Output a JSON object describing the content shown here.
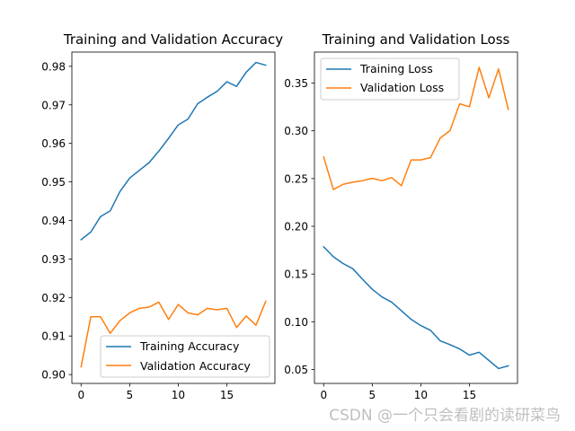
{
  "colors": {
    "training": "#1f77b4",
    "validation": "#ff7f0e"
  },
  "watermark": "CSDN @一个只会看剧的读研菜鸟",
  "chart_data": [
    {
      "type": "line",
      "title": "Training and Validation Accuracy",
      "xlabel": "",
      "ylabel": "",
      "xlim": [
        -0.95,
        19.95
      ],
      "ylim": [
        0.8977,
        0.9837
      ],
      "xticks": [
        0,
        5,
        10,
        15
      ],
      "yticks": [
        0.9,
        0.91,
        0.92,
        0.93,
        0.94,
        0.95,
        0.96,
        0.97,
        0.98
      ],
      "ytick_labels": [
        "0.90",
        "0.91",
        "0.92",
        "0.93",
        "0.94",
        "0.95",
        "0.96",
        "0.97",
        "0.98"
      ],
      "grid": false,
      "legend_position": "lower right",
      "x": [
        0,
        1,
        2,
        3,
        4,
        5,
        6,
        7,
        8,
        9,
        10,
        11,
        12,
        13,
        14,
        15,
        16,
        17,
        18,
        19
      ],
      "series": [
        {
          "name": "Training Accuracy",
          "color_key": "training",
          "values": [
            0.935,
            0.937,
            0.941,
            0.9425,
            0.9475,
            0.951,
            0.953,
            0.955,
            0.958,
            0.9613,
            0.9648,
            0.9663,
            0.9703,
            0.972,
            0.9735,
            0.976,
            0.9748,
            0.9785,
            0.981,
            0.9803
          ]
        },
        {
          "name": "Validation Accuracy",
          "color_key": "validation",
          "values": [
            0.902,
            0.915,
            0.915,
            0.9107,
            0.914,
            0.916,
            0.9172,
            0.9175,
            0.9188,
            0.9143,
            0.9182,
            0.916,
            0.9155,
            0.9172,
            0.9168,
            0.9172,
            0.9122,
            0.9152,
            0.9128,
            0.919
          ]
        }
      ]
    },
    {
      "type": "line",
      "title": "Training and Validation Loss",
      "xlabel": "",
      "ylabel": "",
      "xlim": [
        -0.95,
        19.95
      ],
      "ylim": [
        0.0354,
        0.3825
      ],
      "xticks": [
        0,
        5,
        10,
        15
      ],
      "yticks": [
        0.05,
        0.1,
        0.15,
        0.2,
        0.25,
        0.3,
        0.35
      ],
      "ytick_labels": [
        "0.05",
        "0.10",
        "0.15",
        "0.20",
        "0.25",
        "0.30",
        "0.35"
      ],
      "grid": false,
      "legend_position": "upper left",
      "x": [
        0,
        1,
        2,
        3,
        4,
        5,
        6,
        7,
        8,
        9,
        10,
        11,
        12,
        13,
        14,
        15,
        16,
        17,
        18,
        19
      ],
      "series": [
        {
          "name": "Training Loss",
          "color_key": "training",
          "values": [
            0.1785,
            0.168,
            0.161,
            0.1555,
            0.1445,
            0.134,
            0.126,
            0.1205,
            0.1115,
            0.1025,
            0.096,
            0.091,
            0.08,
            0.076,
            0.0715,
            0.065,
            0.068,
            0.0595,
            0.051,
            0.0538
          ]
        },
        {
          "name": "Validation Loss",
          "color_key": "validation",
          "values": [
            0.2725,
            0.2385,
            0.244,
            0.2462,
            0.2478,
            0.2502,
            0.2478,
            0.251,
            0.2425,
            0.2695,
            0.2695,
            0.272,
            0.2925,
            0.3002,
            0.3283,
            0.3252,
            0.3665,
            0.3345,
            0.3648,
            0.3225
          ]
        }
      ]
    }
  ]
}
